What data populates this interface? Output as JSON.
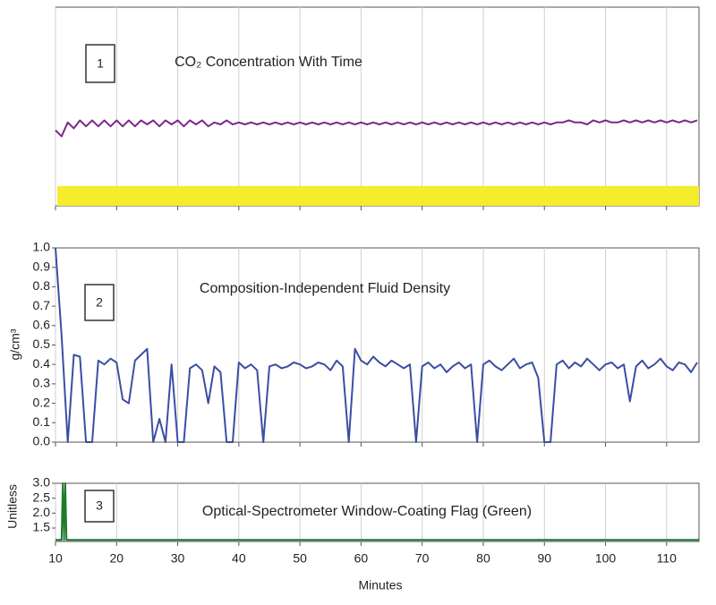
{
  "chart_data": [
    {
      "type": "line",
      "title": "CO₂ Concentration With Time",
      "panel_label": "1",
      "x": [
        10,
        11,
        12,
        13,
        14,
        15,
        16,
        17,
        18,
        19,
        20,
        21,
        22,
        23,
        24,
        25,
        26,
        27,
        28,
        29,
        30,
        31,
        32,
        33,
        34,
        35,
        36,
        37,
        38,
        39,
        40,
        41,
        42,
        43,
        44,
        45,
        46,
        47,
        48,
        49,
        50,
        51,
        52,
        53,
        54,
        55,
        56,
        57,
        58,
        59,
        60,
        61,
        62,
        63,
        64,
        65,
        66,
        67,
        68,
        69,
        70,
        71,
        72,
        73,
        74,
        75,
        76,
        77,
        78,
        79,
        80,
        81,
        82,
        83,
        84,
        85,
        86,
        87,
        88,
        89,
        90,
        91,
        92,
        93,
        94,
        95,
        96,
        97,
        98,
        99,
        100,
        101,
        102,
        103,
        104,
        105,
        106,
        107,
        108,
        109,
        110,
        111,
        112,
        113,
        114,
        115
      ],
      "series": [
        {
          "color": "#7b2a8a",
          "values": [
            0.38,
            0.35,
            0.42,
            0.39,
            0.43,
            0.4,
            0.43,
            0.4,
            0.43,
            0.4,
            0.43,
            0.4,
            0.43,
            0.4,
            0.43,
            0.41,
            0.43,
            0.4,
            0.43,
            0.41,
            0.43,
            0.4,
            0.43,
            0.41,
            0.43,
            0.4,
            0.42,
            0.41,
            0.43,
            0.41,
            0.42,
            0.41,
            0.42,
            0.41,
            0.42,
            0.41,
            0.42,
            0.41,
            0.42,
            0.41,
            0.42,
            0.41,
            0.42,
            0.41,
            0.42,
            0.41,
            0.42,
            0.41,
            0.42,
            0.41,
            0.42,
            0.41,
            0.42,
            0.41,
            0.42,
            0.41,
            0.42,
            0.41,
            0.42,
            0.41,
            0.42,
            0.41,
            0.42,
            0.41,
            0.42,
            0.41,
            0.42,
            0.41,
            0.42,
            0.41,
            0.42,
            0.41,
            0.42,
            0.41,
            0.42,
            0.41,
            0.42,
            0.41,
            0.42,
            0.41,
            0.42,
            0.41,
            0.42,
            0.42,
            0.43,
            0.42,
            0.42,
            0.41,
            0.43,
            0.42,
            0.43,
            0.42,
            0.42,
            0.43,
            0.42,
            0.43,
            0.42,
            0.43,
            0.42,
            0.43,
            0.42,
            0.43,
            0.42,
            0.43,
            0.42,
            0.43
          ]
        },
        {
          "color": "#f4ec2c",
          "fill": true,
          "x": [
            10.3,
            115.3
          ],
          "values": [
            0.1,
            0.1
          ]
        }
      ],
      "xlim": [
        10,
        115.3
      ],
      "ylim": [
        0,
        1
      ],
      "xticks": [
        10,
        20,
        30,
        40,
        50,
        60,
        70,
        80,
        90,
        100,
        110
      ],
      "grid": true
    },
    {
      "type": "line",
      "title": "Composition-Independent Fluid Density",
      "panel_label": "2",
      "ylabel": "g/cm³",
      "x": [
        10,
        11,
        12,
        13,
        14,
        15,
        16,
        17,
        18,
        19,
        20,
        21,
        22,
        23,
        24,
        25,
        26,
        27,
        28,
        29,
        30,
        31,
        32,
        33,
        34,
        35,
        36,
        37,
        38,
        39,
        40,
        41,
        42,
        43,
        44,
        45,
        46,
        47,
        48,
        49,
        50,
        51,
        52,
        53,
        54,
        55,
        56,
        57,
        58,
        59,
        60,
        61,
        62,
        63,
        64,
        65,
        66,
        67,
        68,
        69,
        70,
        71,
        72,
        73,
        74,
        75,
        76,
        77,
        78,
        79,
        80,
        81,
        82,
        83,
        84,
        85,
        86,
        87,
        88,
        89,
        90,
        91,
        92,
        93,
        94,
        95,
        96,
        97,
        98,
        99,
        100,
        101,
        102,
        103,
        104,
        105,
        106,
        107,
        108,
        109,
        110,
        111,
        112,
        113,
        114,
        115
      ],
      "series": [
        {
          "color": "#3a4fa3",
          "values": [
            1.0,
            0.55,
            0.0,
            0.45,
            0.44,
            0.0,
            0.0,
            0.42,
            0.4,
            0.43,
            0.41,
            0.22,
            0.2,
            0.42,
            0.45,
            0.48,
            0.0,
            0.12,
            0.0,
            0.4,
            0.0,
            0.0,
            0.38,
            0.4,
            0.37,
            0.2,
            0.39,
            0.36,
            0.0,
            0.0,
            0.41,
            0.38,
            0.4,
            0.37,
            0.0,
            0.39,
            0.4,
            0.38,
            0.39,
            0.41,
            0.4,
            0.38,
            0.39,
            0.41,
            0.4,
            0.37,
            0.42,
            0.39,
            0.0,
            0.48,
            0.42,
            0.4,
            0.44,
            0.41,
            0.39,
            0.42,
            0.4,
            0.38,
            0.4,
            0.0,
            0.39,
            0.41,
            0.38,
            0.4,
            0.36,
            0.39,
            0.41,
            0.38,
            0.4,
            0.0,
            0.4,
            0.42,
            0.39,
            0.37,
            0.4,
            0.43,
            0.38,
            0.4,
            0.41,
            0.33,
            0.0,
            0.0,
            0.4,
            0.42,
            0.38,
            0.41,
            0.39,
            0.43,
            0.4,
            0.37,
            0.4,
            0.41,
            0.38,
            0.4,
            0.21,
            0.39,
            0.42,
            0.38,
            0.4,
            0.43,
            0.39,
            0.37,
            0.41,
            0.4,
            0.36,
            0.41
          ]
        }
      ],
      "xlim": [
        10,
        115.3
      ],
      "ylim": [
        0,
        1
      ],
      "yticks": [
        {
          "value": 0,
          "label": "0.0"
        },
        0.1,
        0.2,
        0.3,
        0.4,
        0.5,
        0.6,
        0.7,
        0.8,
        0.9,
        {
          "value": 1,
          "label": "1.0"
        }
      ],
      "xticks": [
        10,
        20,
        30,
        40,
        50,
        60,
        70,
        80,
        90,
        100,
        110
      ],
      "grid": true
    },
    {
      "type": "line",
      "title": "Optical-Spectrometer Window-Coating Flag (Green)",
      "panel_label": "3",
      "ylabel": "Unitless",
      "xlabel": "Minutes",
      "x": [
        10,
        11,
        11.2,
        11.4,
        11.6,
        11.8,
        115.3
      ],
      "series": [
        {
          "color": "#1f7a2e",
          "values": [
            1.1,
            1.1,
            3.0,
            1.1,
            3.0,
            1.1,
            1.1
          ]
        }
      ],
      "xlim": [
        10,
        115.3
      ],
      "ylim": [
        1.05,
        3.0
      ],
      "yticks": [
        1.5,
        {
          "value": 2,
          "label": "2.0"
        },
        2.5,
        {
          "value": 3,
          "label": "3.0"
        }
      ],
      "xticks": [
        10,
        20,
        30,
        40,
        50,
        60,
        70,
        80,
        90,
        100,
        110
      ],
      "grid": true
    }
  ]
}
